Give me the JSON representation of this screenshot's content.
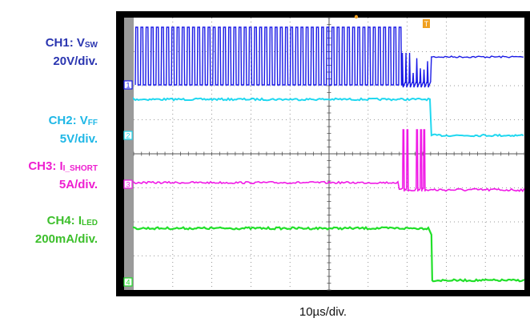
{
  "channels": [
    {
      "id": "1",
      "name": "CH1: V",
      "sub": "SW",
      "scale": "20V/div.",
      "color": "#1a1ae6"
    },
    {
      "id": "2",
      "name": "CH2: V",
      "sub": "FF",
      "scale": "5V/div.",
      "color": "#20d8f0"
    },
    {
      "id": "3",
      "name": "CH3: I",
      "sub": "I_SHORT",
      "scale": "5A/div.",
      "color": "#f019e6"
    },
    {
      "id": "4",
      "name": "CH4: I",
      "sub": "LED",
      "scale": "200mA/div.",
      "color": "#22e02a"
    }
  ],
  "timebase": "10µs/div.",
  "trigger_marker": "T",
  "chart_data": {
    "type": "line",
    "title": "",
    "xlabel": "10µs/div.",
    "x_divisions": 10,
    "y_divisions": 8,
    "grid": true,
    "event_time_div": 2.6,
    "series": [
      {
        "name": "CH1: VSW",
        "description_values": {
          "switching_high_div": 2.8,
          "switching_low_div": 1.1,
          "after_div": 1.8
        }
      },
      {
        "name": "CH2: VFF",
        "description_values": {
          "before_div": 0.4,
          "after_div": -1.4
        }
      },
      {
        "name": "CH3: II_SHORT",
        "description_values": {
          "before_div": 0.0,
          "after_div": -0.4,
          "spike_div": 2.5
        }
      },
      {
        "name": "CH4: ILED",
        "description_values": {
          "before_div": 1.6,
          "after_div": -2.2
        }
      }
    ]
  }
}
